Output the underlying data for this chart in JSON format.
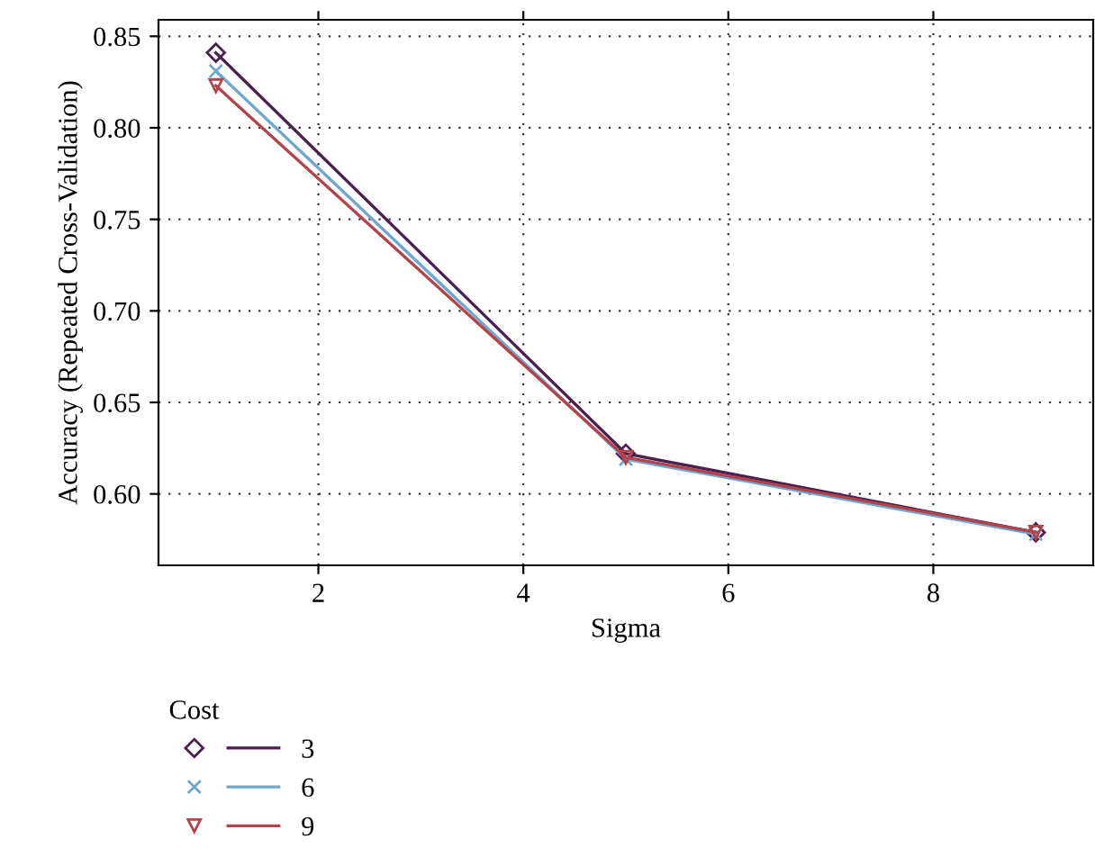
{
  "chart_data": {
    "type": "line",
    "xlabel": "Sigma",
    "ylabel": "Accuracy (Repeated Cross-Validation)",
    "legend_title": "Cost",
    "legend": "bottom left",
    "grid": true,
    "line_style": "solid",
    "x": [
      1,
      5,
      9
    ],
    "xlim": [
      0.44,
      9.56
    ],
    "xticks": [
      2,
      4,
      6,
      8
    ],
    "ylim": [
      0.561,
      0.859
    ],
    "yticks": [
      {
        "value": 0.6,
        "label": "0.60"
      },
      0.65,
      {
        "value": 0.7,
        "label": "0.70"
      },
      0.75,
      {
        "value": 0.8,
        "label": "0.80"
      },
      0.85
    ],
    "series": [
      {
        "name": "3",
        "color": "#4b1f4f",
        "marker": "diamond",
        "values": [
          0.841,
          0.622,
          0.579
        ]
      },
      {
        "name": "6",
        "color": "#6ea6cf",
        "marker": "cross",
        "values": [
          0.831,
          0.619,
          0.578
        ]
      },
      {
        "name": "9",
        "color": "#b0444a",
        "marker": "triangle",
        "values": [
          0.823,
          0.62,
          0.579
        ]
      }
    ]
  }
}
